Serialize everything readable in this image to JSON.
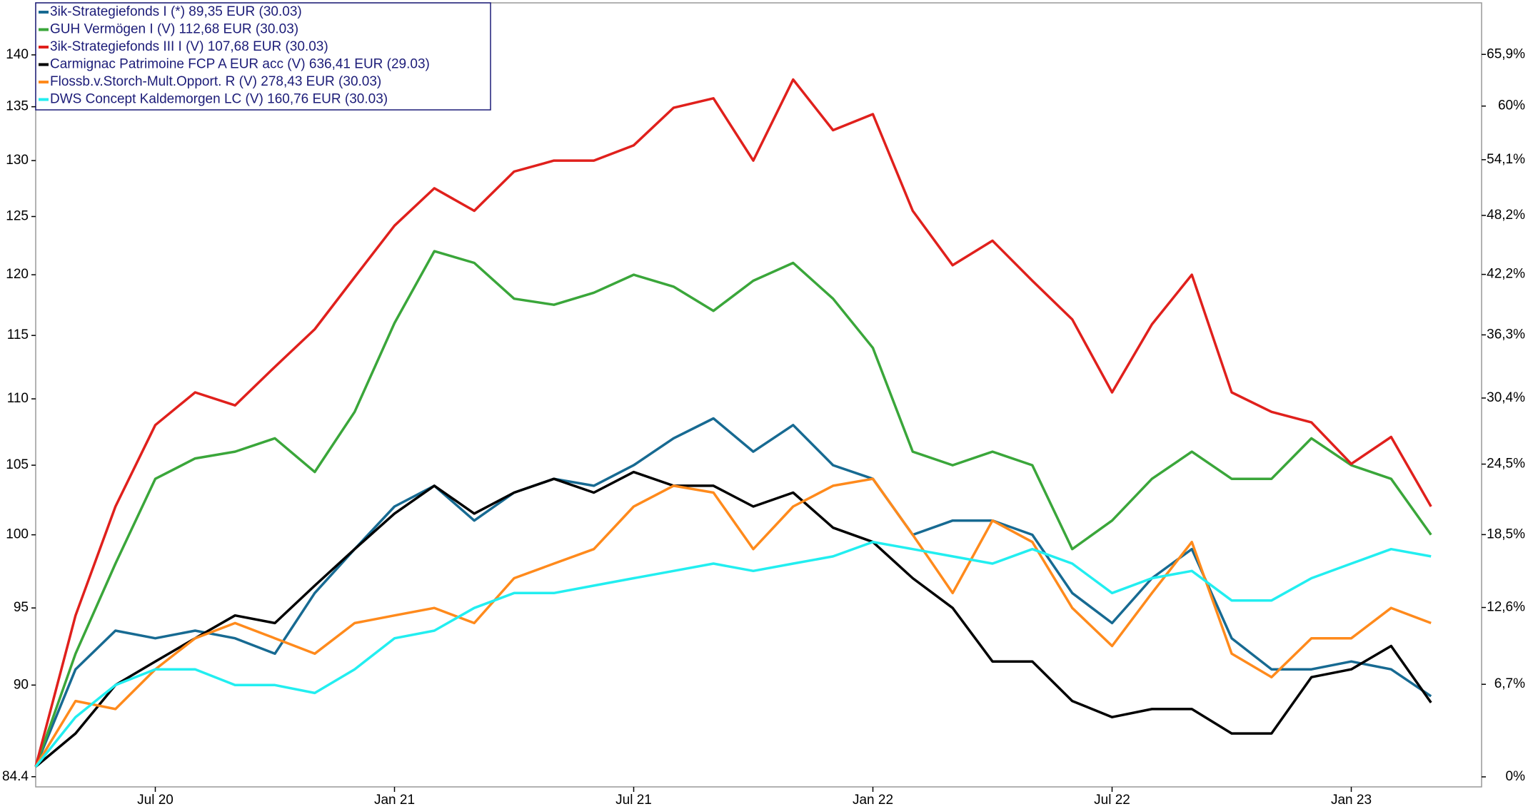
{
  "chart_data": {
    "type": "line",
    "x": [
      "2020-04",
      "2020-05",
      "2020-06",
      "2020-07",
      "2020-08",
      "2020-09",
      "2020-10",
      "2020-11",
      "2020-12",
      "2021-01",
      "2021-02",
      "2021-03",
      "2021-04",
      "2021-05",
      "2021-06",
      "2021-07",
      "2021-08",
      "2021-09",
      "2021-10",
      "2021-11",
      "2021-12",
      "2022-01",
      "2022-02",
      "2022-03",
      "2022-04",
      "2022-05",
      "2022-06",
      "2022-07",
      "2022-08",
      "2022-09",
      "2022-10",
      "2022-11",
      "2022-12",
      "2023-01",
      "2023-02",
      "2023-03"
    ],
    "xlim": [
      "2020-04",
      "2023-04"
    ],
    "xticks": [
      {
        "value": "2020-07",
        "label": "Jul 20"
      },
      {
        "value": "2021-01",
        "label": "Jan 21"
      },
      {
        "value": "2021-07",
        "label": "Jul 21"
      },
      {
        "value": "2022-01",
        "label": "Jan 22"
      },
      {
        "value": "2022-07",
        "label": "Jul 22"
      },
      {
        "value": "2023-01",
        "label": "Jan 23"
      }
    ],
    "ylim": [
      83.8,
      145.2
    ],
    "ylog": true,
    "yticks": [
      84.4,
      90,
      95,
      100,
      105,
      110,
      115,
      120,
      125,
      130,
      135,
      140
    ],
    "y2lim": [
      -0.7,
      72.0
    ],
    "y2log": true,
    "y2ticks": [
      {
        "value": 0,
        "label": "0%"
      },
      {
        "value": 6.7,
        "label": "6,7%"
      },
      {
        "value": 12.6,
        "label": "12,6%"
      },
      {
        "value": 18.5,
        "label": "18,5%"
      },
      {
        "value": 24.5,
        "label": "24,5%"
      },
      {
        "value": 30.4,
        "label": "30,4%"
      },
      {
        "value": 36.3,
        "label": "36,3%"
      },
      {
        "value": 42.2,
        "label": "42,2%"
      },
      {
        "value": 48.2,
        "label": "48,2%"
      },
      {
        "value": 54.1,
        "label": "54,1%"
      },
      {
        "value": 60,
        "label": "60%"
      },
      {
        "value": 65.9,
        "label": "65,9%"
      }
    ],
    "legend": "top-left",
    "series": [
      {
        "name": "3ik-Strategiefonds I (*) 89,35 EUR (30.03)",
        "color": "#176a92",
        "values": [
          85,
          91,
          93.5,
          93,
          93.5,
          93,
          92,
          96,
          99,
          102,
          103.5,
          101,
          103,
          104,
          103.5,
          105,
          107,
          108.5,
          106,
          108,
          105,
          104,
          100,
          101,
          101,
          100,
          96,
          94,
          97,
          99,
          93,
          91,
          91,
          91.5,
          91,
          89.3
        ]
      },
      {
        "name": "GUH Vermögen I (V) 112,68 EUR (30.03)",
        "color": "#3aa63a",
        "values": [
          85,
          92,
          98,
          104,
          105.5,
          106,
          107,
          104.5,
          109,
          116,
          122,
          121,
          118,
          117.5,
          118.5,
          120,
          119,
          117,
          119.5,
          121,
          118,
          114,
          106,
          105,
          106,
          105,
          99,
          101,
          104,
          106,
          104,
          104,
          107,
          105,
          104,
          100
        ]
      },
      {
        "name": "3ik-Strategiefonds III I (V) 107,68 EUR (30.03)",
        "color": "#e0201c",
        "values": [
          85,
          94.5,
          102,
          108,
          110.5,
          109.5,
          112.5,
          115.5,
          119.8,
          124.2,
          127.5,
          125.5,
          129,
          130,
          130,
          131.4,
          134.9,
          135.8,
          130,
          137.6,
          132.8,
          134.3,
          125.5,
          120.8,
          122.9,
          119.5,
          116.3,
          110.5,
          115.9,
          120,
          110.5,
          109,
          108.2,
          105.1,
          107.1,
          102
        ]
      },
      {
        "name": "Carmignac Patrimoine FCP A EUR acc (V) 636,41 EUR (29.03)",
        "color": "#000000",
        "values": [
          85,
          87,
          90,
          91.5,
          93,
          94.5,
          94,
          96.5,
          99,
          101.5,
          103.5,
          101.5,
          103,
          104,
          103,
          104.5,
          103.5,
          103.5,
          102,
          103,
          100.5,
          99.5,
          97,
          95,
          91.5,
          91.5,
          89,
          88,
          88.5,
          88.5,
          87,
          87,
          90.5,
          91,
          92.5,
          88.9
        ]
      },
      {
        "name": "Flossb.v.Storch-Mult.Opport. R (V) 278,43 EUR (30.03)",
        "color": "#ff8a1c",
        "values": [
          85,
          89,
          88.5,
          91,
          93,
          94,
          93,
          92,
          94,
          94.5,
          95,
          94,
          97,
          98,
          99,
          102,
          103.5,
          103,
          99,
          102,
          103.5,
          104,
          100,
          96,
          101,
          99.5,
          95,
          92.5,
          96,
          99.5,
          92,
          90.5,
          93,
          93,
          95,
          94
        ]
      },
      {
        "name": "DWS Concept Kaldemorgen LC (V) 160,76 EUR (30.03)",
        "color": "#22eef0",
        "values": [
          85,
          88,
          90,
          91,
          91,
          90,
          90,
          89.5,
          91,
          93,
          93.5,
          95,
          96,
          96,
          96.5,
          97,
          97.5,
          98,
          97.5,
          98,
          98.5,
          99.5,
          99,
          98.5,
          98,
          99,
          98,
          96,
          97,
          97.5,
          95.5,
          95.5,
          97,
          98,
          99,
          98.5
        ]
      }
    ]
  }
}
